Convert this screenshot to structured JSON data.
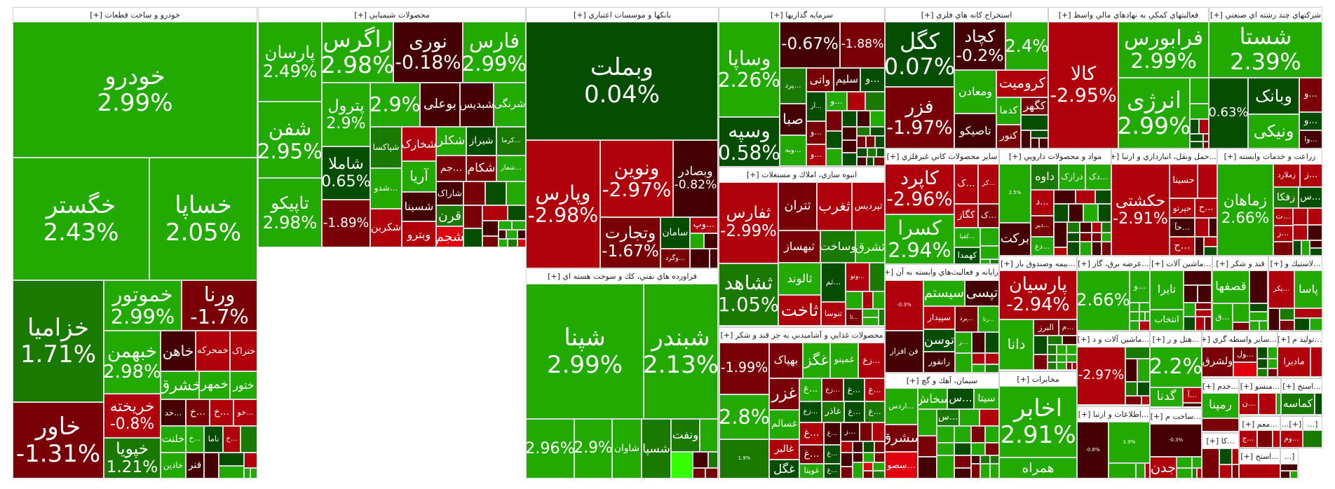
{
  "colors": {
    "G": "#22aa00",
    "M": "#1a7a00",
    "D": "#054d00",
    "K": "#440003",
    "R": "#7a0008",
    "B": "#b0000c",
    "E": "#e0000f",
    "L": "#33ff00"
  },
  "sectors": [
    {
      "title": "خودرو و ساخت قطعات [+]",
      "stocks": [
        [
          "خودرو",
          "2.99%",
          "G"
        ],
        [
          "خگستر",
          "2.43%",
          "G"
        ],
        [
          "خساپا",
          "2.05%",
          "G"
        ],
        [
          "خزامیا",
          "1.71%",
          "M"
        ],
        [
          "خاور",
          "-1.31%",
          "R"
        ],
        [
          "خموتور",
          "2.99%",
          "G"
        ],
        [
          "ورنا",
          "-1.7%",
          "R"
        ],
        [
          "خبهمن",
          "2.98%",
          "G"
        ],
        [
          "خریخته",
          "-0.8%",
          "B"
        ],
        [
          "خپویا",
          "1.21%",
          "M"
        ],
        [
          "خاهن",
          "",
          "K"
        ],
        [
          "خمحرکه",
          "",
          "B"
        ],
        [
          "ختراک",
          "",
          "B"
        ],
        [
          "خشرق",
          "",
          "G"
        ],
        [
          "خمهر",
          "",
          "G"
        ],
        [
          "ختور",
          "",
          "G"
        ],
        [
          "...خد",
          "",
          "K"
        ],
        [
          "...خ",
          "",
          "R"
        ],
        [
          "...خ",
          "",
          "B"
        ],
        [
          "...خو",
          "",
          "B"
        ],
        [
          "خلنت",
          "",
          "G"
        ],
        [
          "...خ",
          "",
          "G"
        ],
        [
          "ناما",
          "",
          "D"
        ],
        [
          "...خ",
          "",
          "B"
        ],
        [
          "خاذین",
          "",
          "G"
        ],
        [
          "فنر",
          "",
          "K"
        ]
      ]
    },
    {
      "title": "محصولات شيميايي [+]",
      "stocks": [
        [
          "پارسان",
          "2.49%",
          "G"
        ],
        [
          "شفن",
          "2.95%",
          "G"
        ],
        [
          "تاپیکو",
          "2.98%",
          "G"
        ],
        [
          "راگرس",
          "2.98%",
          "G"
        ],
        [
          "نوری",
          "-0.18%",
          "K"
        ],
        [
          "فارس",
          "2.99%",
          "G"
        ],
        [
          "پترول",
          "2.9%",
          "G"
        ],
        [
          "",
          "2.9%",
          "G"
        ],
        [
          "بوعلی",
          "",
          "K"
        ],
        [
          "شبدیس",
          "",
          "K"
        ],
        [
          "شرنگی",
          "",
          "G"
        ],
        [
          "شاملا",
          "0.65%",
          "D"
        ],
        [
          "",
          "-1.89%",
          "R"
        ],
        [
          "شپاکسا",
          "",
          "M"
        ],
        [
          "...شدو",
          "",
          "G"
        ],
        [
          "شکربن",
          "",
          "B"
        ],
        [
          "شخارک",
          "",
          "B"
        ],
        [
          "آریا",
          "",
          "G"
        ],
        [
          "شسینا",
          "",
          "K"
        ],
        [
          "وبترو",
          "",
          "B"
        ],
        [
          "شکلر",
          "",
          "G"
        ],
        [
          "شیراز",
          "",
          "D"
        ],
        [
          "...کرما",
          "",
          "M"
        ],
        [
          "...جم",
          "",
          "R"
        ],
        [
          "شکام",
          "",
          "R"
        ],
        [
          "...شفار",
          "",
          "G"
        ],
        [
          "شاراک",
          "",
          "K"
        ],
        [
          "قرن",
          "",
          "M"
        ],
        [
          "شجم",
          "",
          "E"
        ]
      ]
    },
    {
      "title": "بانكها و موسسات اعتباري [+]",
      "stocks": [
        [
          "وبملت",
          "0.04%",
          "D"
        ],
        [
          "وپارس",
          "-2.98%",
          "B"
        ],
        [
          "ونوین",
          "-2.97%",
          "B"
        ],
        [
          "وبصادر",
          "-0.82%",
          "K"
        ],
        [
          "وتجارت",
          "-1.67%",
          "R"
        ],
        [
          "سامان",
          "",
          "D"
        ],
        [
          "...وپ",
          "",
          "B"
        ],
        [
          "...وگرد",
          "",
          "R"
        ]
      ]
    },
    {
      "title": "فراورده هاي نفتي، كك و سوخت هسته اي [+]",
      "stocks": [
        [
          "شپنا",
          "2.99%",
          "G"
        ],
        [
          "شبندر",
          "2.13%",
          "G"
        ],
        [
          "",
          "2.96%",
          "G"
        ],
        [
          "",
          "2.9%",
          "G"
        ],
        [
          "شاوان",
          "",
          "G"
        ],
        [
          "شسپا",
          "",
          "M"
        ],
        [
          "ونفت",
          "",
          "M"
        ]
      ]
    },
    {
      "title": "سرمايه گذاريها [+]",
      "stocks": [
        [
          "وساپا",
          "2.26%",
          "G"
        ],
        [
          "وسپه",
          "0.58%",
          "D"
        ],
        [
          "",
          "-0.67%",
          "K"
        ],
        [
          "",
          "-1.88%",
          "R"
        ],
        [
          "...پرد",
          "",
          "M"
        ],
        [
          "واتی",
          "",
          "R"
        ],
        [
          "سلیم",
          "",
          "K"
        ],
        [
          "...و",
          "",
          "D"
        ],
        [
          "...آر",
          "",
          "D"
        ],
        [
          "...و",
          "",
          "G"
        ],
        [
          "صبا",
          "",
          "K"
        ],
        [
          "...و",
          "",
          "R"
        ],
        [
          "...وبه",
          "",
          "G"
        ],
        [
          "...و",
          "",
          "B"
        ]
      ]
    },
    {
      "title": "انبوه سازي، املاك و مستغلات [+]",
      "stocks": [
        [
          "ثفارس",
          "-2.99%",
          "B"
        ],
        [
          "ثشاهد",
          "1.05%",
          "M"
        ],
        [
          "ثتران",
          "",
          "R"
        ],
        [
          "ثغرب",
          "",
          "B"
        ],
        [
          "ثپردیس",
          "",
          "B"
        ],
        [
          "ثبهساز",
          "",
          "R"
        ],
        [
          "وساخت",
          "",
          "M"
        ],
        [
          "ثشرق",
          "",
          "G"
        ],
        [
          "ثالوند",
          "",
          "G"
        ],
        [
          "ثاخت",
          "",
          "B"
        ],
        [
          "...ثم",
          "",
          "D"
        ],
        [
          "...وتو",
          "",
          "B"
        ],
        [
          "تنوسا",
          "",
          "B"
        ],
        [
          "...ثا",
          "",
          "R"
        ]
      ]
    },
    {
      "title": "محصولات غذايي و آشاميدني به جز قند و شكر [+]",
      "stocks": [
        [
          "",
          "-1.99%",
          "R"
        ],
        [
          "بهپاک",
          "",
          "R"
        ],
        [
          "غگز",
          "",
          "G"
        ],
        [
          "غمینو",
          "",
          "G"
        ],
        [
          "...زع",
          "",
          "B"
        ],
        [
          "",
          "2.8%",
          "G"
        ],
        [
          "",
          "1.9%",
          "M"
        ],
        [
          "غزر",
          "",
          "R"
        ],
        [
          "...غ",
          "",
          "G"
        ],
        [
          "...زع",
          "",
          "R"
        ],
        [
          "...غ",
          "",
          "D"
        ],
        [
          "...غ",
          "",
          "B"
        ],
        [
          "غسالم",
          "",
          "G"
        ],
        [
          "غالبر",
          "",
          "B"
        ],
        [
          "غگل",
          "",
          "D"
        ],
        [
          "...زع",
          "",
          "D"
        ],
        [
          "غاذر",
          "",
          "M"
        ],
        [
          "...غ",
          "",
          "D"
        ],
        [
          "...غ",
          "",
          "M"
        ],
        [
          "...غ",
          "",
          "B"
        ],
        [
          "...غ",
          "",
          "K"
        ],
        [
          "...ز",
          "",
          "K"
        ],
        [
          "...غ",
          "",
          "R"
        ],
        [
          "...غ",
          "",
          "D"
        ],
        [
          "غویتا",
          "",
          "G"
        ],
        [
          "...غ",
          "",
          "D"
        ]
      ]
    },
    {
      "title": "استخراج كانه هاي فلزي [+]",
      "stocks": [
        [
          "کگل",
          "0.07%",
          "D"
        ],
        [
          "فزر",
          "-1.97%",
          "R"
        ],
        [
          "کچاد",
          "-0.2%",
          "K"
        ],
        [
          "",
          "2.4%",
          "G"
        ],
        [
          "ومعادن",
          "",
          "G"
        ],
        [
          "تاصیکو",
          "",
          "K"
        ],
        [
          "کرومیت",
          "",
          "B"
        ],
        [
          "کدما",
          "",
          "G"
        ],
        [
          "کگهر",
          "",
          "R"
        ],
        [
          "کنور",
          "",
          "R"
        ]
      ]
    },
    {
      "title": "ساير محصولات كاني غيرفلزي [+]",
      "stocks": [
        [
          "کاپرد",
          "-2.96%",
          "B"
        ],
        [
          "کسرا",
          "2.94%",
          "G"
        ],
        [
          "...ک",
          "",
          "B"
        ],
        [
          "...کر",
          "",
          "B"
        ],
        [
          "کگاز",
          "",
          "B"
        ],
        [
          "...ک",
          "",
          "R"
        ],
        [
          "...کفپا",
          "",
          "G"
        ],
        [
          "کهمدا",
          "",
          "D"
        ]
      ]
    },
    {
      "title": "مواد و محصولات دارويي [+]",
      "stocks": [
        [
          "",
          "2.5%",
          "G"
        ],
        [
          "برکت",
          "",
          "K"
        ],
        [
          "داوه",
          "",
          "M"
        ],
        [
          "درازک",
          "",
          "G"
        ],
        [
          "...دک",
          "",
          "G"
        ],
        [
          "...د",
          "",
          "B"
        ],
        [
          "...دیر",
          "",
          "R"
        ],
        [
          "...دع",
          "",
          "G"
        ]
      ]
    },
    {
      "title": "...حمل ونقل، انبارداري و ارتبا [+]",
      "stocks": [
        [
          "حکشتی",
          "-2.91%",
          "B"
        ],
        [
          "حسینا",
          "",
          "B"
        ],
        [
          "حپرتو",
          "",
          "B"
        ],
        [
          "...ح",
          "",
          "B"
        ],
        [
          "...حآ",
          "",
          "K"
        ],
        [
          "...ح",
          "",
          "B"
        ]
      ]
    },
    {
      "title": "زراعت و خدمات وابسته [+]",
      "stocks": [
        [
          "زماهان",
          "2.66%",
          "G"
        ],
        [
          "زملارد",
          "",
          "B"
        ],
        [
          "...ز",
          "",
          "B"
        ],
        [
          "زفکا",
          "",
          "M"
        ],
        [
          "...س",
          "",
          "D"
        ],
        [
          "...ت",
          "",
          "B"
        ],
        [
          "...ز",
          "",
          "B"
        ]
      ]
    },
    {
      "title": "فعاليتهاي كمكي به نهادهاي مالي واسط [+]",
      "stocks": [
        [
          "کالا",
          "-2.95%",
          "B"
        ],
        [
          "فرابورس",
          "2.99%",
          "G"
        ],
        [
          "انرژی",
          "2.99%",
          "G"
        ]
      ]
    },
    {
      "title": "شركتهاي چند رشته اي صنعتي [+]",
      "stocks": [
        [
          "شستا",
          "2.39%",
          "G"
        ],
        [
          "",
          "0.63%",
          "D"
        ],
        [
          "وبانک",
          "",
          "D"
        ],
        [
          "ونیکی",
          "",
          "G"
        ],
        [
          "...و",
          "",
          "R"
        ],
        [
          "...و",
          "",
          "D"
        ],
        [
          "...وا",
          "",
          "K"
        ]
      ]
    },
    {
      "title": "رايانه و فعاليت‌هاي وابسته به آن [+]",
      "stocks": [
        [
          "",
          "-0.3%",
          "B"
        ],
        [
          "فن افزار",
          "",
          "K"
        ],
        [
          "سیستم",
          "",
          "G"
        ],
        [
          "تپسی",
          "",
          "K"
        ],
        [
          "سپیدار",
          "",
          "B"
        ],
        [
          "...پرد",
          "",
          "R"
        ],
        [
          "...رتا",
          "",
          "G"
        ],
        [
          "توسن",
          "",
          "D"
        ],
        [
          "رانفور",
          "",
          "K"
        ],
        [
          "...ر",
          "",
          "G"
        ]
      ]
    },
    {
      "title": "سيمان، آهك و گچ [+]",
      "stocks": [
        [
          "...اردس",
          "",
          "G"
        ],
        [
          "سشرق",
          "",
          "R"
        ],
        [
          "...سصو",
          "",
          "E"
        ],
        [
          "سخاش",
          "",
          "G"
        ],
        [
          "...س",
          "",
          "D"
        ],
        [
          "سیتا",
          "",
          "G"
        ],
        [
          "...س",
          "",
          "M"
        ]
      ]
    },
    {
      "title": "...بيمه وصندوق باز [+]",
      "stocks": [
        [
          "پارسیان",
          "-2.94%",
          "B"
        ],
        [
          "دانا",
          "",
          "G"
        ],
        [
          "البرز",
          "",
          "R"
        ],
        [
          "...م",
          "",
          "R"
        ]
      ]
    },
    {
      "title": "مخابرات [+]",
      "stocks": [
        [
          "اخابر",
          "2.91%",
          "G"
        ],
        [
          "همراه",
          "",
          "G"
        ]
      ]
    },
    {
      "title": "...عرضه برق، گاز [+]",
      "stocks": [
        [
          "",
          "2.66%",
          "G"
        ],
        [
          "...و",
          "",
          "G"
        ]
      ]
    },
    {
      "title": "...ماشين آلات و د [+]",
      "stocks": [
        [
          "",
          "-2.97%",
          "B"
        ]
      ]
    },
    {
      "title": "...اطلاعات و ارتبا [+]",
      "stocks": [
        [
          "",
          "-0.8%",
          "K"
        ],
        [
          "",
          "1.9%",
          "G"
        ]
      ]
    },
    {
      "title": "...ماشين آلات [+]",
      "stocks": [
        [
          "تایرا",
          "",
          "G"
        ],
        [
          "انتخاب",
          "",
          "G"
        ]
      ]
    },
    {
      "title": "...هتل و ر [+]",
      "stocks": [
        [
          "",
          "2.2%",
          "G"
        ],
        [
          "گدنا",
          "",
          "G"
        ],
        [
          "...آ",
          "",
          "B"
        ]
      ]
    },
    {
      "title": "...ساخت م [+]",
      "stocks": [
        [
          "",
          "-0.3%",
          "K"
        ],
        [
          "جدن",
          "",
          "B"
        ]
      ]
    },
    {
      "title": "قند و شكر [+]",
      "stocks": [
        [
          "قصفها",
          "",
          "G"
        ],
        [
          "...ق",
          "",
          "G"
        ]
      ]
    },
    {
      "title": "...لاستيك و [+]",
      "stocks": [
        [
          "...پکر",
          "",
          "B"
        ],
        [
          "پاسا",
          "",
          "G"
        ]
      ]
    },
    {
      "title": "...ساير واسطه گري [+]",
      "stocks": [
        [
          "ولشرق",
          "",
          "R"
        ],
        [
          "...ول",
          "",
          "R"
        ]
      ]
    },
    {
      "title": "...توليد م [+]",
      "stocks": [
        [
          "مادیرا",
          "",
          "B"
        ]
      ]
    },
    {
      "title": "...خدم [+]",
      "stocks": [
        [
          "رمپنا",
          "",
          "G"
        ]
      ]
    },
    {
      "title": "...منسو [+]",
      "stocks": [
        [
          "...ن",
          "",
          "B"
        ]
      ]
    },
    {
      "title": "...استخ [+]",
      "stocks": [
        [
          "کماسه",
          "",
          "M"
        ]
      ]
    },
    {
      "title": "...كا [+]",
      "stocks": []
    },
    {
      "title": "...معم [+]",
      "stocks": [
        [
          "...ج",
          "",
          "B"
        ]
      ]
    },
    {
      "title": "[+]...",
      "stocks": [
        [
          "...وم",
          "",
          "B"
        ]
      ]
    },
    {
      "title": "[...",
      "stocks": []
    },
    {
      "title": "...استخ [+]",
      "stocks": []
    },
    {
      "title": "[...",
      "stocks": []
    }
  ]
}
